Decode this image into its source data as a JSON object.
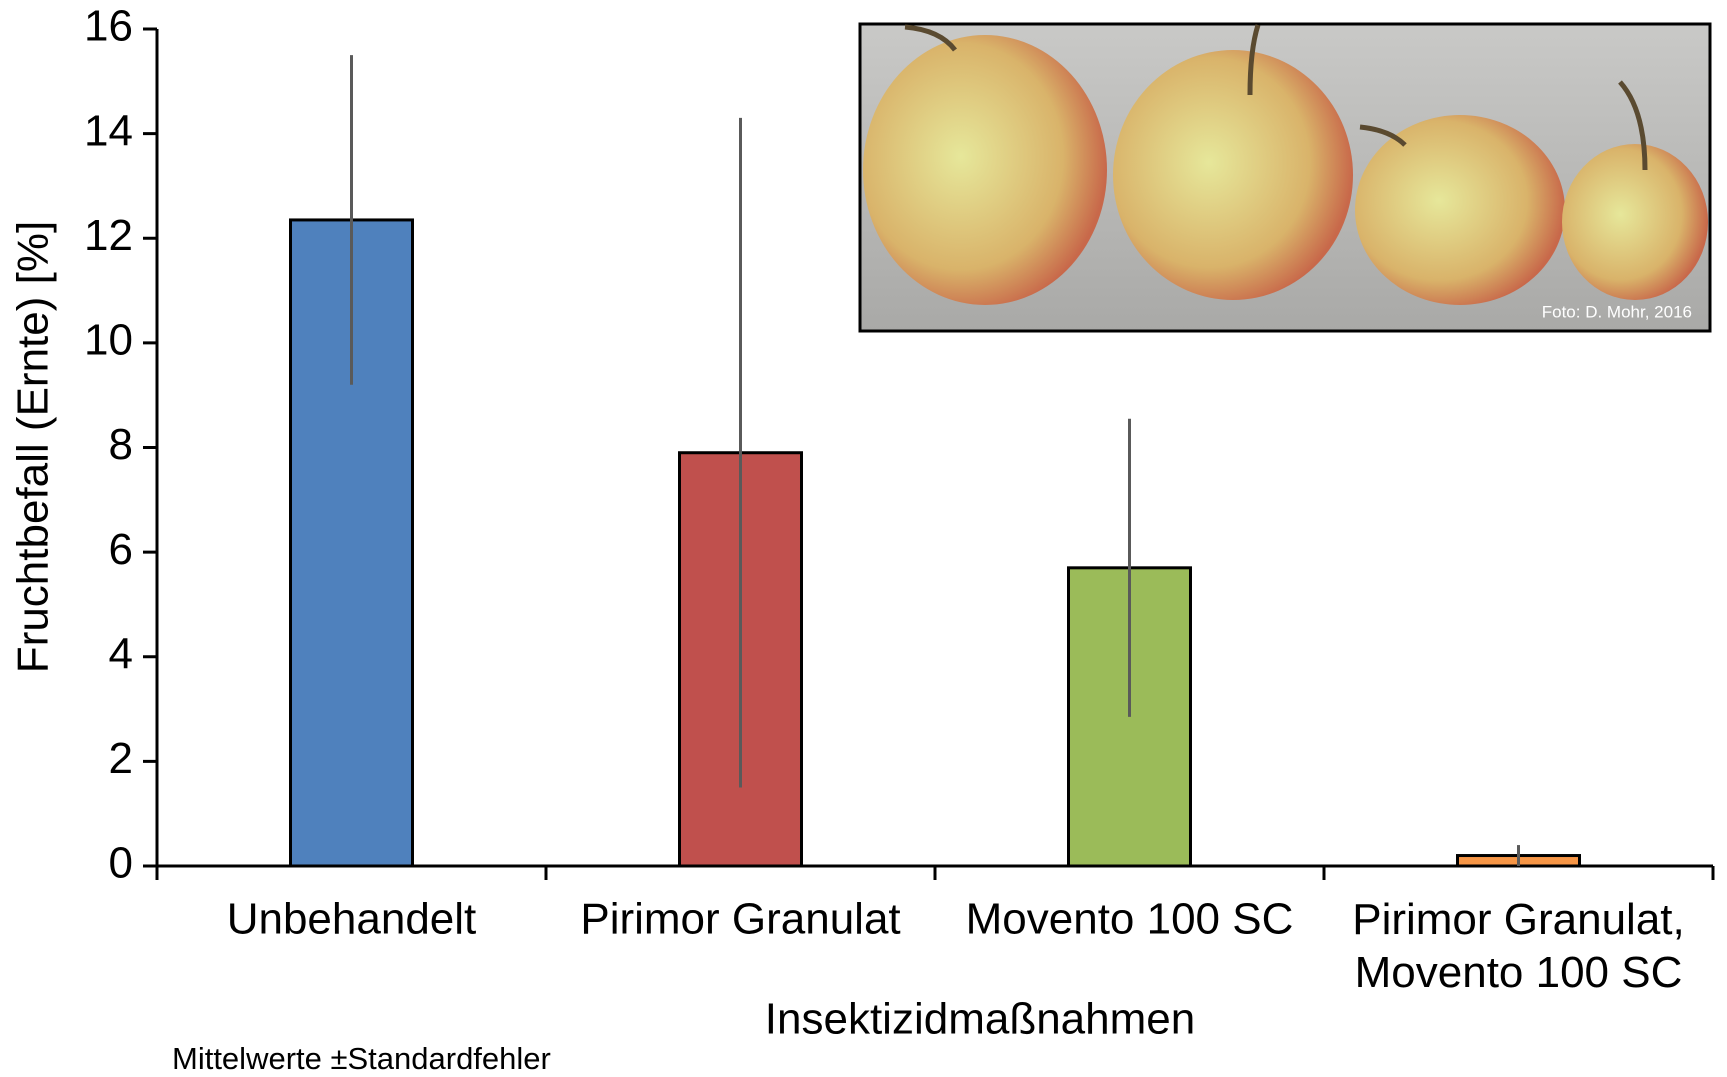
{
  "chart_data": {
    "type": "bar",
    "x_label": "Insektizidmaßnahmen",
    "y_label": "Fruchtbefall (Ernte) [%]",
    "categories": [
      "Unbehandelt",
      "Pirimor Granulat",
      "Movento 100 SC",
      "Pirimor Granulat,\nMovento 100 SC"
    ],
    "values": [
      12.35,
      7.9,
      5.7,
      0.2
    ],
    "errors": [
      3.15,
      6.4,
      2.85,
      0.2
    ],
    "colors": [
      "#4f81bd",
      "#c0504d",
      "#9bbb59",
      "#f79646"
    ],
    "ylim": [
      0,
      16
    ],
    "yticks": [
      0,
      2,
      4,
      6,
      8,
      10,
      12,
      14,
      16
    ],
    "grid": false,
    "note": "Mittelwerte ±Standardfehler",
    "photo_credit": "Foto: D. Mohr, 2016"
  }
}
